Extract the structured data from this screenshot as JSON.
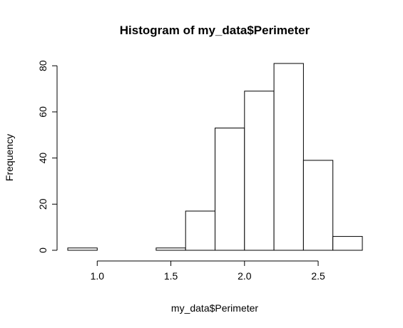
{
  "chart_data": {
    "type": "bar",
    "title": "Histogram of my_data$Perimeter",
    "xlabel": "my_data$Perimeter",
    "ylabel": "Frequency",
    "bins": [
      {
        "from": 0.8,
        "to": 1.0,
        "count": 1
      },
      {
        "from": 1.0,
        "to": 1.2,
        "count": 0
      },
      {
        "from": 1.2,
        "to": 1.4,
        "count": 0
      },
      {
        "from": 1.4,
        "to": 1.6,
        "count": 1
      },
      {
        "from": 1.6,
        "to": 1.8,
        "count": 17
      },
      {
        "from": 1.8,
        "to": 2.0,
        "count": 53
      },
      {
        "from": 2.0,
        "to": 2.2,
        "count": 69
      },
      {
        "from": 2.2,
        "to": 2.4,
        "count": 81
      },
      {
        "from": 2.4,
        "to": 2.6,
        "count": 39
      },
      {
        "from": 2.6,
        "to": 2.8,
        "count": 6
      }
    ],
    "xlim": [
      0.8,
      2.8
    ],
    "ylim": [
      0,
      81
    ],
    "x_ticks": [
      1.0,
      1.5,
      2.0,
      2.5
    ],
    "x_tick_labels": [
      "1.0",
      "1.5",
      "2.0",
      "2.5"
    ],
    "y_ticks": [
      0,
      20,
      40,
      60,
      80
    ],
    "y_tick_labels": [
      "0",
      "20",
      "40",
      "60",
      "80"
    ],
    "grid": false,
    "bar_fill": "#ffffff",
    "bar_stroke": "#000000"
  }
}
